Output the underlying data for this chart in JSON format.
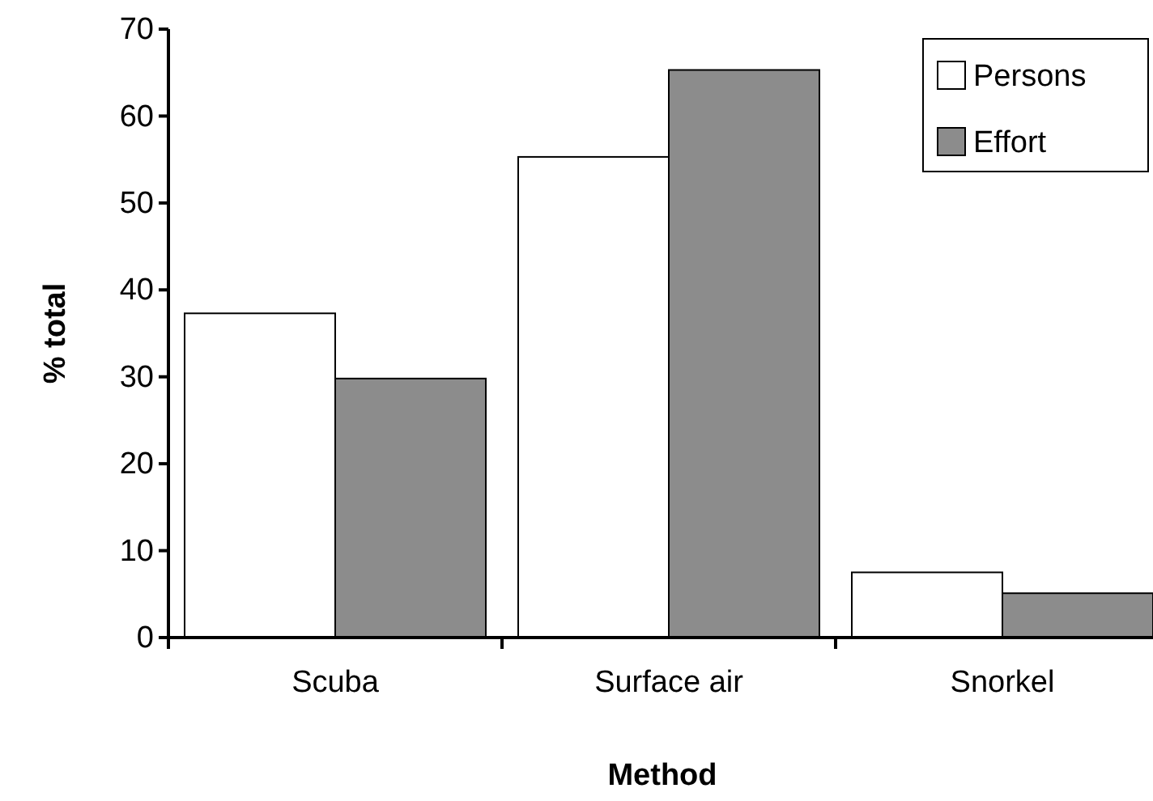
{
  "chart_data": {
    "type": "bar",
    "xlabel": "Method",
    "ylabel": "% total",
    "categories": [
      "Scuba",
      "Surface air",
      "Snorkel"
    ],
    "series": [
      {
        "name": "Persons",
        "color": "#ffffff",
        "values": [
          37.3,
          55.3,
          7.5
        ]
      },
      {
        "name": "Effort",
        "color": "#8c8c8c",
        "values": [
          29.8,
          65.3,
          5.1
        ]
      }
    ],
    "ylim": [
      0,
      70
    ],
    "yticks": [
      0,
      10,
      20,
      30,
      40,
      50,
      60,
      70
    ],
    "grid": false,
    "legend": "top right"
  }
}
